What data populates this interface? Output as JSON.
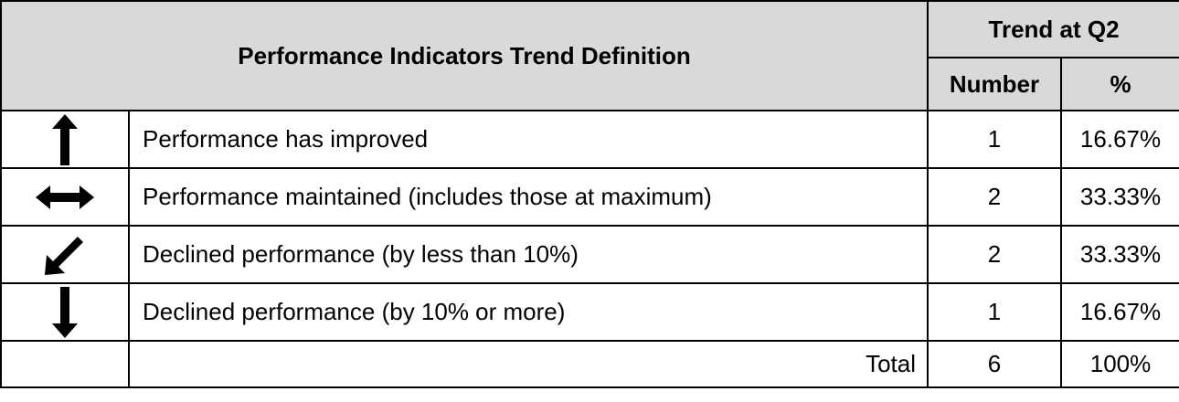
{
  "header": {
    "title": "Performance Indicators Trend Definition",
    "group": "Trend at Q2",
    "columns": [
      "Number",
      "%"
    ]
  },
  "table": {
    "rows": [
      {
        "description": "Performance has improved",
        "number": 1,
        "percent": "16.67%"
      },
      {
        "description": "Performance maintained (includes those at maximum)",
        "number": 2,
        "percent": "33.33%"
      },
      {
        "description": "Declined performance (by less than 10%)",
        "number": 2,
        "percent": "33.33%"
      },
      {
        "description": "Declined performance (by 10% or more)",
        "number": 1,
        "percent": "16.67%"
      }
    ],
    "total": {
      "label": "Total",
      "number": 6,
      "percent": "100%"
    }
  }
}
